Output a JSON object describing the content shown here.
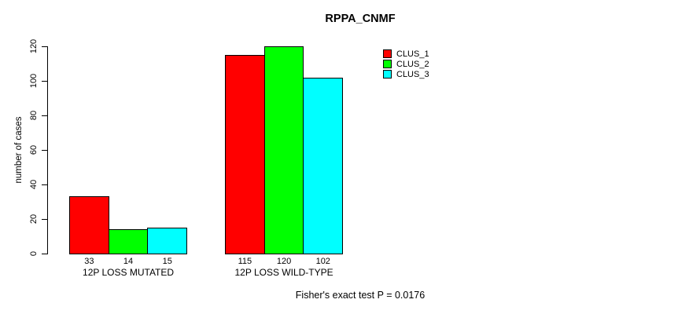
{
  "title": "RPPA_CNMF",
  "y_axis_label": "number of cases",
  "footer_note": "Fisher's exact test P = 0.0176",
  "legend": {
    "items": [
      {
        "label": "CLUS_1",
        "color": "#ff0000"
      },
      {
        "label": "CLUS_2",
        "color": "#00ff00"
      },
      {
        "label": "CLUS_3",
        "color": "#00ffff"
      }
    ]
  },
  "chart_data": {
    "type": "bar",
    "title": "RPPA_CNMF",
    "ylabel": "number of cases",
    "xlabel": "",
    "categories": [
      "12P LOSS MUTATED",
      "12P LOSS WILD-TYPE"
    ],
    "series": [
      {
        "name": "CLUS_1",
        "color": "#ff0000",
        "values": [
          33,
          115
        ]
      },
      {
        "name": "CLUS_2",
        "color": "#00ff00",
        "values": [
          14,
          120
        ]
      },
      {
        "name": "CLUS_3",
        "color": "#00ffff",
        "values": [
          15,
          102
        ]
      }
    ],
    "bar_value_labels": [
      [
        33,
        14,
        15
      ],
      [
        115,
        120,
        102
      ]
    ],
    "ylim": [
      0,
      120
    ],
    "yticks": [
      0,
      20,
      40,
      60,
      80,
      100,
      120
    ],
    "grid": false,
    "legend_position": "top-right",
    "annotation": "Fisher's exact test P = 0.0176"
  }
}
